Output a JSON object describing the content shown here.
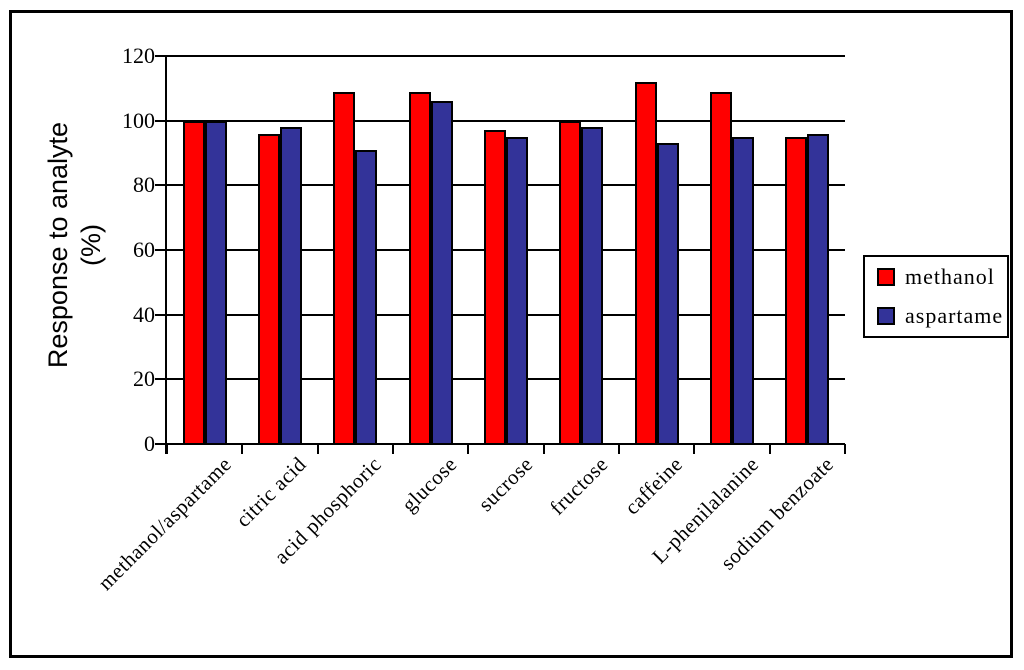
{
  "chart_data": {
    "type": "bar",
    "title": "",
    "categories": [
      "methanol/aspartame",
      "citric acid",
      "acid phosphoric",
      "glucose",
      "sucrose",
      "fructose",
      "caffeine",
      "L-phenilalanine",
      "sodium benzoate"
    ],
    "series": [
      {
        "name": "methanol",
        "color": "#ff0000",
        "values": [
          100,
          96,
          109,
          109,
          97,
          100,
          112,
          109,
          95
        ]
      },
      {
        "name": "aspartame",
        "color": "#333399",
        "values": [
          100,
          98,
          91,
          106,
          95,
          98,
          93,
          95,
          96
        ]
      }
    ],
    "ylabel": "Response to analyte (%)",
    "ylabel_lines": [
      "Response to analyte",
      "(%)"
    ],
    "xlabel": "",
    "ylim": [
      0,
      120
    ],
    "yticks": [
      0,
      20,
      40,
      60,
      80,
      100,
      120
    ],
    "grid": "horizontal gridlines on",
    "legend_position": "right",
    "axis_color": "#000000",
    "plot_background": "#ffffff"
  }
}
